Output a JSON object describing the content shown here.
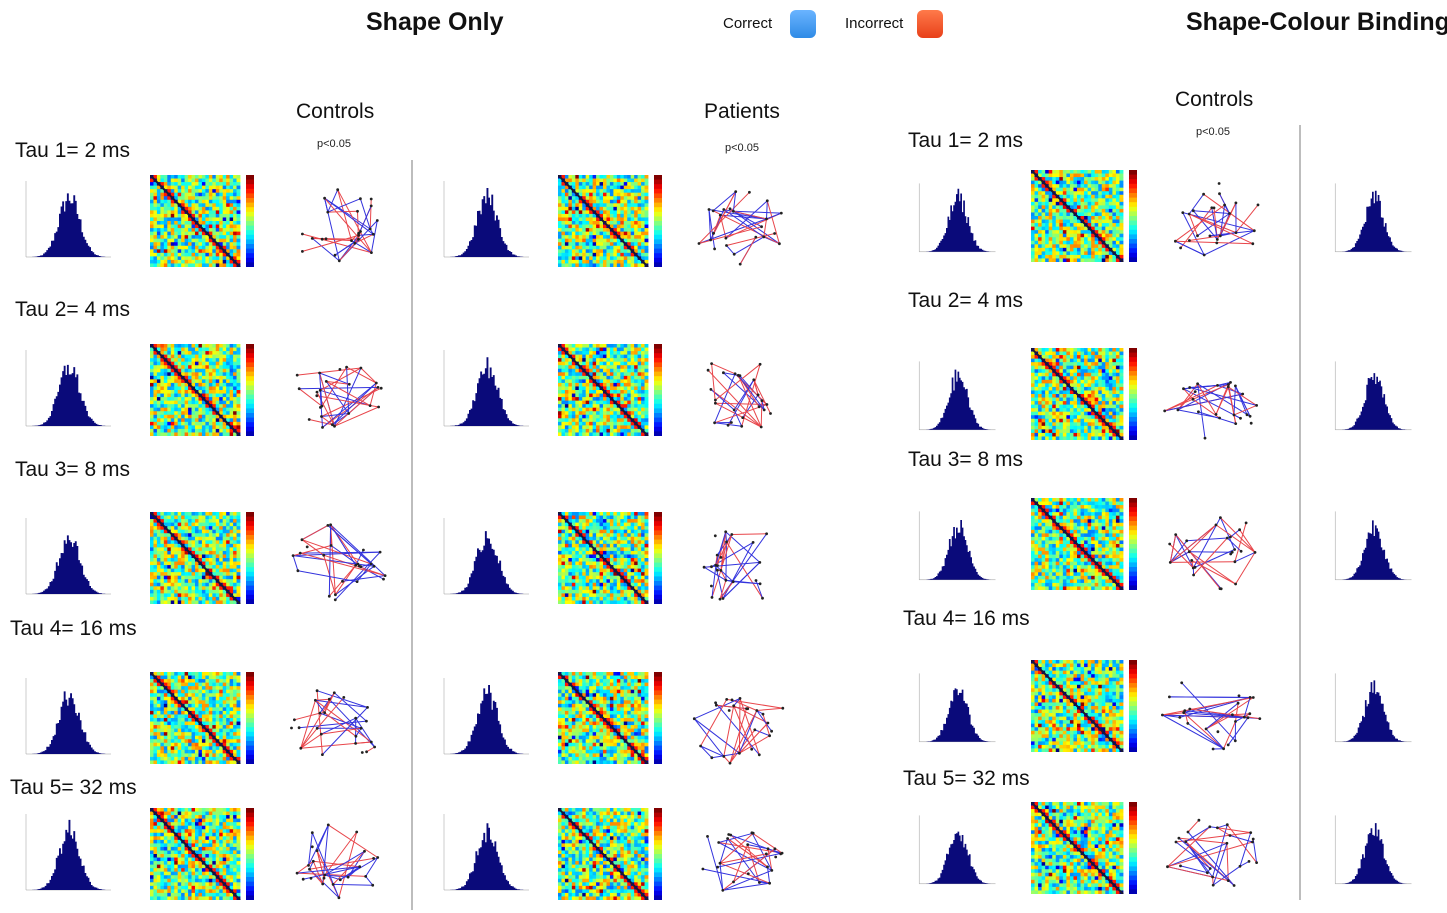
{
  "header": {
    "left_title": "Shape Only",
    "right_title": "Shape-Colour Binding",
    "legend": [
      {
        "label": "Correct",
        "color": "#2f8be6"
      },
      {
        "label": "Incorrect",
        "color": "#e8401a"
      }
    ]
  },
  "shape_only": {
    "controls_title": "Controls",
    "patients_title": "Patients",
    "controls_sig": "p<0.05",
    "patients_sig": "p<0.05",
    "taus": [
      "Tau 1= 2 ms",
      "Tau 2= 4 ms",
      "Tau 3= 8 ms",
      "Tau 4= 16 ms",
      "Tau 5= 32 ms"
    ]
  },
  "shape_colour": {
    "controls_title": "Controls",
    "controls_sig": "p<0.05",
    "taus": [
      "Tau 1= 2 ms",
      "Tau 2= 4 ms",
      "Tau 3= 8 ms",
      "Tau 4= 16 ms",
      "Tau 5= 32 ms"
    ]
  },
  "colors": {
    "histogram": "#0a0a7a",
    "edge_correct": "#3333dd",
    "edge_incorrect": "#e8454a",
    "divider": "#bdbdbd"
  }
}
